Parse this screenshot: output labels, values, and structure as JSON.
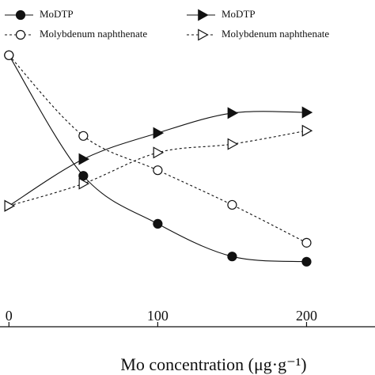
{
  "chart_data": {
    "type": "line",
    "x_label": "Mo concentration (μg·g⁻¹)",
    "x": [
      0,
      50,
      100,
      150,
      200
    ],
    "xlim": [
      -6,
      246
    ],
    "xticks": [
      0,
      100,
      200
    ],
    "ylim": [
      0,
      100
    ],
    "series": [
      {
        "name": "MoDTP",
        "color": "#111111",
        "marker": "circle",
        "filled": true,
        "dash": false,
        "values": [
          83.1,
          46.2,
          31.5,
          21.5,
          19.9
        ]
      },
      {
        "name": "Molybdenum naphthenate",
        "color": "#111111",
        "marker": "circle",
        "filled": false,
        "dash": true,
        "values": [
          83.1,
          58.4,
          47.9,
          37.3,
          25.7
        ]
      },
      {
        "name": "MoDTP",
        "color": "#111111",
        "marker": "triangle",
        "filled": true,
        "dash": false,
        "values": [
          37.0,
          51.3,
          59.3,
          65.4,
          65.6
        ]
      },
      {
        "name": "Molybdenum naphthenate",
        "color": "#111111",
        "marker": "triangle",
        "filled": false,
        "dash": true,
        "values": [
          37.0,
          43.8,
          53.3,
          55.9,
          60.0
        ]
      }
    ]
  }
}
